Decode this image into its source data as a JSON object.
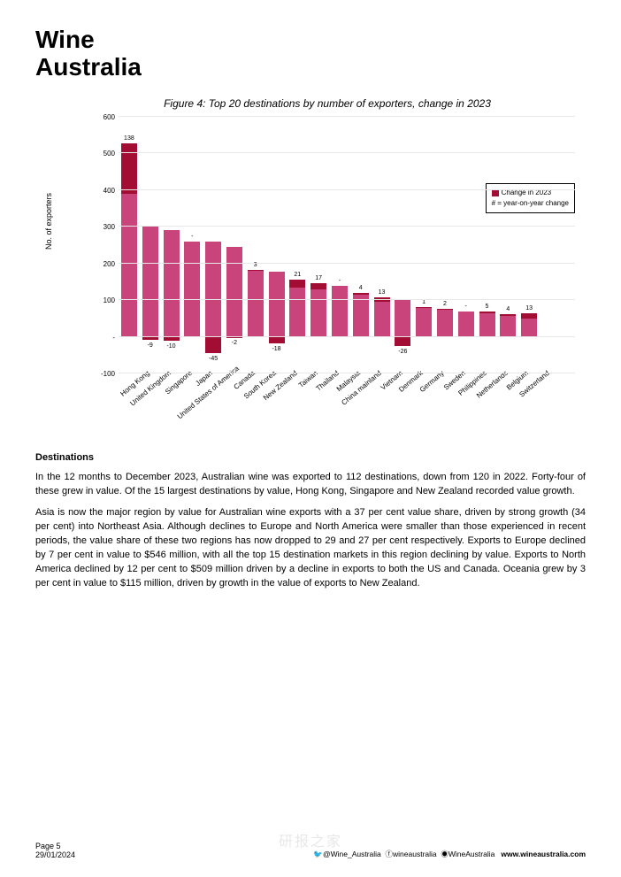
{
  "logo": {
    "line1": "Wine",
    "line2": "Australia"
  },
  "chart": {
    "type": "bar",
    "title": "Figure 4: Top 20 destinations by number of exporters, change in 2023",
    "ylabel": "No. of exporters",
    "ylim_min": -100,
    "ylim_max": 600,
    "ytick_step": 100,
    "yticks": [
      -100,
      0,
      100,
      200,
      300,
      400,
      500,
      600
    ],
    "ytick_labels": [
      "-100",
      "-",
      "100",
      "200",
      "300",
      "400",
      "500",
      "600"
    ],
    "base_color": "#c9447a",
    "change_color": "#a30c33",
    "grid_color": "#e8e8e8",
    "background_color": "#ffffff",
    "legend": {
      "line1": "Change in 2023",
      "line2": "# = year-on-year change"
    },
    "zero_label": "-",
    "categories": [
      {
        "name": "Hong Kong",
        "base": 390,
        "change": 138
      },
      {
        "name": "United Kingdom",
        "base": 300,
        "change": -9
      },
      {
        "name": "Singapore",
        "base": 290,
        "change": -10
      },
      {
        "name": "Japan",
        "base": 260,
        "change": 0,
        "label": "-"
      },
      {
        "name": "United States of America",
        "base": 260,
        "change": -45
      },
      {
        "name": "Canada",
        "base": 245,
        "change": -2
      },
      {
        "name": "South Korea",
        "base": 180,
        "change": 3
      },
      {
        "name": "New Zealand",
        "base": 178,
        "change": -18
      },
      {
        "name": "Taiwan",
        "base": 135,
        "change": 21
      },
      {
        "name": "Thailand",
        "base": 130,
        "change": 17
      },
      {
        "name": "Malaysia",
        "base": 140,
        "change": 0,
        "label": "-"
      },
      {
        "name": "China mainland",
        "base": 115,
        "change": 4
      },
      {
        "name": "Vietnam",
        "base": 95,
        "change": 13
      },
      {
        "name": "Denmark",
        "base": 100,
        "change": -26
      },
      {
        "name": "Germany",
        "base": 80,
        "change": 1
      },
      {
        "name": "Sweden",
        "base": 75,
        "change": 2
      },
      {
        "name": "Philippines",
        "base": 70,
        "change": 0,
        "label": "-"
      },
      {
        "name": "Netherlands",
        "base": 65,
        "change": 5
      },
      {
        "name": "Belgium",
        "base": 58,
        "change": 4
      },
      {
        "name": "Switzerland",
        "base": 50,
        "change": 13
      }
    ]
  },
  "body": {
    "heading": "Destinations",
    "p1": "In the 12 months to December 2023, Australian wine was exported to 112 destinations, down from 120 in 2022. Forty-four of these grew in value. Of the 15 largest destinations by value, Hong Kong, Singapore and New Zealand recorded value growth.",
    "p2": "Asia is now the major region by value for Australian wine exports with a 37 per cent value share, driven by strong growth (34 per cent) into Northeast Asia. Although declines to Europe and North America were smaller than those experienced in recent periods, the value share of these two regions has now dropped to 29 and 27 per cent respectively. Exports to Europe declined by 7 per cent in value to $546 million, with all the top 15 destination markets in this region declining by value. Exports to North America declined by 12 per cent to $509 million driven by a decline in exports to both the US and Canada. Oceania grew by 3 per cent in value to $115 million, driven by growth in the value of exports to New Zealand."
  },
  "footer": {
    "page": "Page 5",
    "date": "29/01/2024",
    "twitter": "@Wine_Australia",
    "fb": "wineaustralia",
    "ig": "WineAustralia",
    "web": "www.wineaustralia.com"
  },
  "watermark": "研报之家"
}
